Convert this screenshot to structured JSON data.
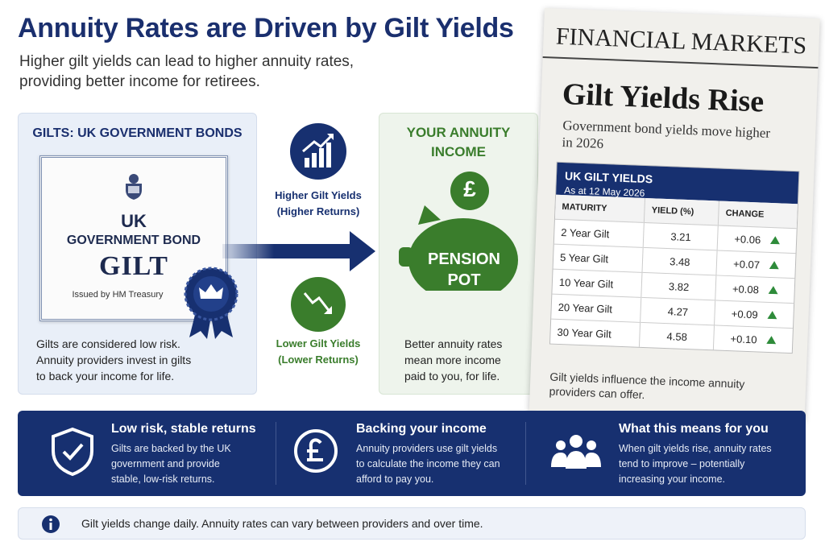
{
  "header": {
    "title": "Annuity Rates are Driven by Gilt Yields",
    "subtitle_lines": [
      "Higher gilt yields can lead to higher annuity rates,",
      "providing better income for retirees."
    ]
  },
  "gilts_panel": {
    "heading": "GILTS: UK GOVERNMENT BONDS",
    "certificate": {
      "line1": "UK",
      "line2": "GOVERNMENT BOND",
      "line3": "GILT",
      "issuer": "Issued by HM Treasury"
    },
    "body_lines": [
      "Gilts are considered low risk.",
      "Annuity providers invest in gilts",
      "to back your income for life."
    ]
  },
  "middle": {
    "higher": {
      "label": "Higher Gilt Yields",
      "sub": "(Higher Returns)"
    },
    "lower": {
      "label": "Lower Gilt Yields",
      "sub": "(Lower Returns)"
    }
  },
  "annuity_panel": {
    "heading_lines": [
      "YOUR ANNUITY",
      "INCOME"
    ],
    "coin": "£",
    "pot_lines": [
      "PENSION",
      "POT"
    ],
    "body_lines": [
      "Better annuity rates",
      "mean more income",
      "paid to you, for life."
    ]
  },
  "newspaper": {
    "masthead": "FINANCIAL MARKETS",
    "headline": "Gilt Yields Rise",
    "deck_lines": [
      "Government bond yields move higher",
      "in 2026"
    ],
    "table": {
      "title": "UK GILT YIELDS",
      "subtitle": "As at 12 May 2026",
      "headers": [
        "MATURITY",
        "YIELD (%)",
        "CHANGE"
      ],
      "rows": [
        [
          "2 Year Gilt",
          "3.21",
          "+0.06"
        ],
        [
          "5 Year Gilt",
          "3.48",
          "+0.07"
        ],
        [
          "10 Year Gilt",
          "3.82",
          "+0.08"
        ],
        [
          "20 Year Gilt",
          "4.27",
          "+0.09"
        ],
        [
          "30 Year Gilt",
          "4.58",
          "+0.10"
        ]
      ]
    },
    "footer_lines": [
      "Gilt yields influence the income annuity",
      "providers can offer."
    ]
  },
  "features": [
    {
      "title": "Low risk, stable returns",
      "body_lines": [
        "Gilts are backed by the UK",
        "government and provide",
        "stable, low-risk returns."
      ]
    },
    {
      "title": "Backing your income",
      "body_lines": [
        "Annuity providers use gilt yields",
        "to calculate the income they can",
        "afford to pay you."
      ]
    },
    {
      "title": "What this means for you",
      "body_lines": [
        "When gilt yields rise, annuity rates",
        "tend to improve – potentially",
        "increasing your income."
      ]
    }
  ],
  "note": "Gilt yields change daily. Annuity rates can vary between providers and over time."
}
